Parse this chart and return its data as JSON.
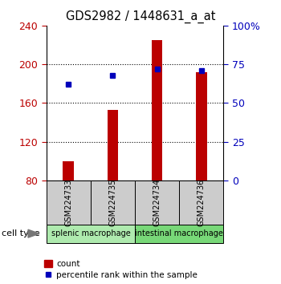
{
  "title": "GDS2982 / 1448631_a_at",
  "samples": [
    "GSM224733",
    "GSM224735",
    "GSM224734",
    "GSM224736"
  ],
  "counts": [
    100,
    153,
    225,
    192
  ],
  "percentiles": [
    62,
    68,
    72,
    71
  ],
  "ylim_left": [
    80,
    240
  ],
  "ylim_right": [
    0,
    100
  ],
  "yticks_left": [
    80,
    120,
    160,
    200,
    240
  ],
  "yticks_right": [
    0,
    25,
    50,
    75,
    100
  ],
  "ytick_labels_right": [
    "0",
    "25",
    "50",
    "75",
    "100%"
  ],
  "groups": [
    {
      "label": "splenic macrophage",
      "samples": [
        0,
        1
      ],
      "color": "#aeeaae"
    },
    {
      "label": "intestinal macrophage",
      "samples": [
        2,
        3
      ],
      "color": "#78d878"
    }
  ],
  "group_label_prefix": "cell type",
  "bar_color": "#bb0000",
  "point_color": "#0000bb",
  "bar_width": 0.25,
  "sample_box_color": "#cccccc",
  "legend_count_label": "count",
  "legend_percentile_label": "percentile rank within the sample"
}
